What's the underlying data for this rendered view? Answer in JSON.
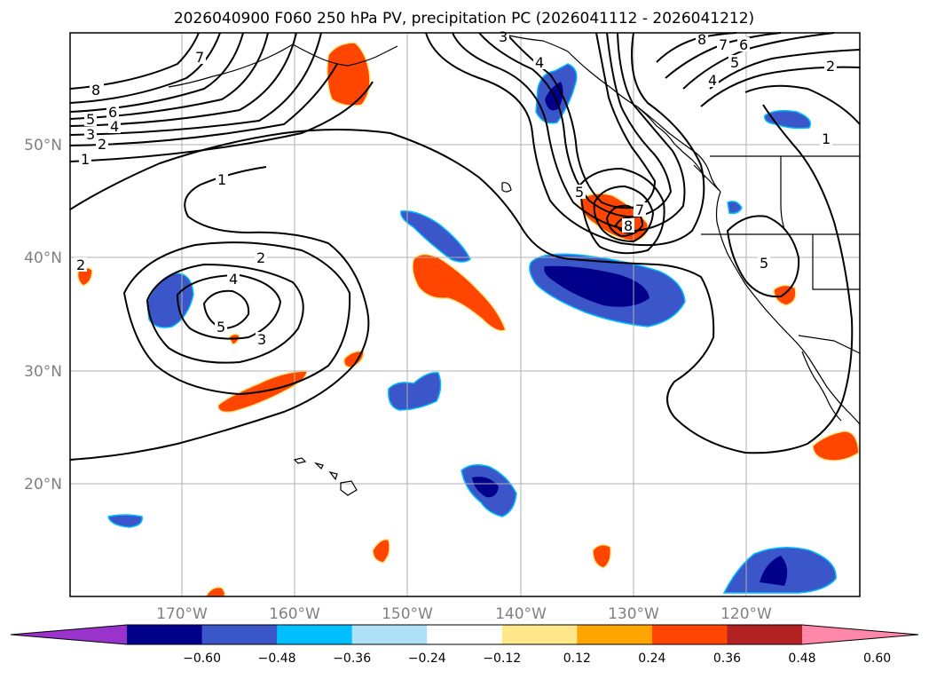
{
  "title": "2026040900 F060 250 hPa PV, precipitation PC (2026041112 - 2026041212)",
  "map": {
    "lat_labels": [
      "50°N",
      "40°N",
      "30°N",
      "20°N"
    ],
    "lon_labels": [
      "170°W",
      "160°W",
      "150°W",
      "140°W",
      "130°W",
      "120°W"
    ],
    "gridlines": true
  },
  "contours": {
    "variable": "250 hPa PV",
    "labels": [
      "8",
      "7",
      "6",
      "5",
      "4",
      "3",
      "2",
      "1",
      "1",
      "2",
      "4",
      "5",
      "3",
      "3",
      "4",
      "5",
      "6",
      "7",
      "8",
      "2",
      "1",
      "5",
      "7",
      "8",
      "5",
      "4",
      "2"
    ]
  },
  "shading": {
    "variable": "precipitation PC",
    "colors": {
      "below_-0.60": "#9933cc",
      "-0.60_-0.48": "#00008b",
      "-0.48_-0.36": "#3a56c9",
      "-0.36_-0.24": "#00bfff",
      "-0.24_-0.12": "#aee1f7",
      "-0.12_0.12": "#ffffff",
      "0.12_0.24": "#ffe88a",
      "0.24_0.36": "#ffa500",
      "0.36_0.48": "#ff4500",
      "0.48_0.60": "#b22222",
      "above_0.60": "#ff88aa"
    }
  },
  "colorbar": {
    "ticks": [
      "−0.60",
      "−0.48",
      "−0.36",
      "−0.24",
      "−0.12",
      "0.12",
      "0.24",
      "0.36",
      "0.48",
      "0.60"
    ],
    "bins": [
      "#9933cc",
      "#00008b",
      "#3a56c9",
      "#00bfff",
      "#aee1f7",
      "#ffffff",
      "#ffe88a",
      "#ffa500",
      "#ff4500",
      "#b22222",
      "#ff88aa"
    ],
    "extend": "both"
  }
}
